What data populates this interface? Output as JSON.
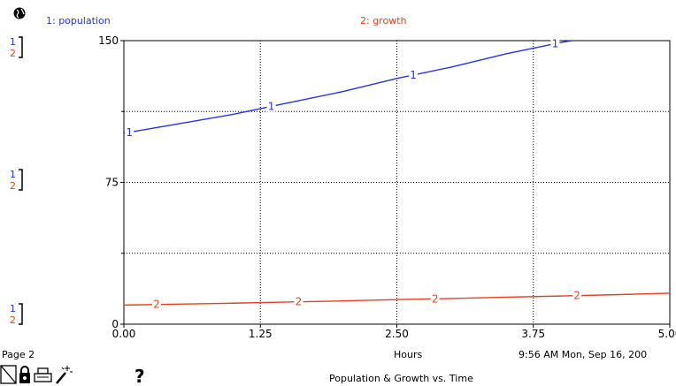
{
  "legend": {
    "series1": "1: population",
    "series2": "2: growth",
    "series1_num": "1",
    "series2_num": "2"
  },
  "page": {
    "label": "Page 2",
    "footer_title": "Population & Growth vs. Time",
    "timestamp": "9:56 AM  Mon, Sep 16, 200"
  },
  "icons": {
    "help_glyph": "?"
  },
  "colors": {
    "series1": "#1f36e6",
    "series2": "#e8401c",
    "grid": "#000000"
  },
  "chart_data": {
    "type": "line",
    "title": "Population & Growth vs. Time",
    "xlabel": "Hours",
    "ylabel": "",
    "x_ticks": [
      "0.00",
      "1.25",
      "2.50",
      "3.75",
      "5.00"
    ],
    "y_ticks": [
      "0",
      "75",
      "150"
    ],
    "xlim": [
      0,
      5
    ],
    "ylim": [
      0,
      150
    ],
    "grid": true,
    "series": [
      {
        "name": "1: population",
        "label": "1",
        "x": [
          0.0,
          0.5,
          1.0,
          1.5,
          2.0,
          2.5,
          3.0,
          3.5,
          4.0,
          4.1
        ],
        "y": [
          101,
          106,
          111,
          117,
          123,
          130,
          136,
          143,
          149,
          150
        ],
        "label_x": [
          0.05,
          1.35,
          2.65,
          3.95
        ]
      },
      {
        "name": "2: growth",
        "label": "2",
        "x": [
          0.0,
          0.5,
          1.0,
          1.5,
          2.0,
          2.5,
          3.0,
          3.5,
          4.0,
          4.5,
          5.0
        ],
        "y": [
          10.1,
          10.6,
          11.1,
          11.7,
          12.3,
          13.0,
          13.6,
          14.3,
          14.9,
          15.6,
          16.4
        ],
        "label_x": [
          0.3,
          1.6,
          2.85,
          4.15
        ]
      }
    ]
  }
}
